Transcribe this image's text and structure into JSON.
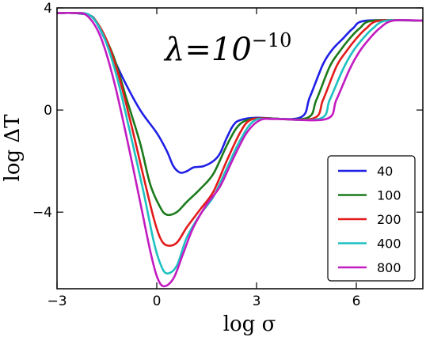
{
  "chart_data": {
    "type": "line",
    "xlabel": "log σ",
    "ylabel": "log ΔT",
    "annotation": {
      "base": "λ=10",
      "exponent": "−10"
    },
    "xlim": [
      -3,
      8
    ],
    "ylim": [
      -7,
      4
    ],
    "xticks": [
      {
        "v": -3,
        "label": "−3"
      },
      {
        "v": 0,
        "label": "0"
      },
      {
        "v": 3,
        "label": "3"
      },
      {
        "v": 6,
        "label": "6"
      }
    ],
    "yticks": [
      {
        "v": 4,
        "label": "4"
      },
      {
        "v": 0,
        "label": "0"
      },
      {
        "v": -4,
        "label": "−4"
      }
    ],
    "grid": false,
    "legend_position": "bottom-right",
    "series": [
      {
        "name": "40",
        "color": "#1f1fe6",
        "points": [
          [
            -3,
            3.8
          ],
          [
            -2.5,
            3.8
          ],
          [
            -2,
            3.7
          ],
          [
            -1.8,
            3.4
          ],
          [
            -1.5,
            2.6
          ],
          [
            -1,
            1.2
          ],
          [
            -0.5,
            0
          ],
          [
            0,
            -0.9
          ],
          [
            0.3,
            -1.6
          ],
          [
            0.5,
            -2.2
          ],
          [
            0.7,
            -2.45
          ],
          [
            0.9,
            -2.4
          ],
          [
            1.1,
            -2.25
          ],
          [
            1.4,
            -2.2
          ],
          [
            1.7,
            -2.0
          ],
          [
            1.9,
            -1.7
          ],
          [
            2.1,
            -1.1
          ],
          [
            2.3,
            -0.6
          ],
          [
            2.5,
            -0.4
          ],
          [
            3,
            -0.3
          ],
          [
            4.3,
            -0.3
          ],
          [
            4.6,
            0.5
          ],
          [
            5,
            1.8
          ],
          [
            5.3,
            2.4
          ],
          [
            5.6,
            2.8
          ],
          [
            5.9,
            3.2
          ],
          [
            6.3,
            3.5
          ],
          [
            8,
            3.5
          ]
        ]
      },
      {
        "name": "100",
        "color": "#1b7a1b",
        "points": [
          [
            -3,
            3.8
          ],
          [
            -2.5,
            3.8
          ],
          [
            -2,
            3.7
          ],
          [
            -1.7,
            3.2
          ],
          [
            -1.3,
            2.1
          ],
          [
            -0.9,
            0.4
          ],
          [
            -0.5,
            -1.3
          ],
          [
            -0.2,
            -2.9
          ],
          [
            0.1,
            -3.8
          ],
          [
            0.3,
            -4.1
          ],
          [
            0.6,
            -4.0
          ],
          [
            0.9,
            -3.6
          ],
          [
            1.3,
            -3.1
          ],
          [
            1.7,
            -2.5
          ],
          [
            2.1,
            -1.4
          ],
          [
            2.4,
            -0.7
          ],
          [
            2.7,
            -0.4
          ],
          [
            3.2,
            -0.32
          ],
          [
            4.5,
            -0.32
          ],
          [
            4.8,
            0.4
          ],
          [
            5.2,
            1.7
          ],
          [
            5.5,
            2.3
          ],
          [
            5.8,
            2.8
          ],
          [
            6.1,
            3.2
          ],
          [
            6.5,
            3.5
          ],
          [
            8,
            3.5
          ]
        ]
      },
      {
        "name": "200",
        "color": "#e31b1b",
        "points": [
          [
            -3,
            3.8
          ],
          [
            -2.5,
            3.8
          ],
          [
            -2,
            3.7
          ],
          [
            -1.6,
            3.0
          ],
          [
            -1.2,
            1.6
          ],
          [
            -0.8,
            -0.4
          ],
          [
            -0.4,
            -2.6
          ],
          [
            -0.1,
            -4.2
          ],
          [
            0.1,
            -5.0
          ],
          [
            0.3,
            -5.3
          ],
          [
            0.6,
            -5.2
          ],
          [
            0.9,
            -4.6
          ],
          [
            1.3,
            -3.9
          ],
          [
            1.7,
            -3.2
          ],
          [
            2.1,
            -2.0
          ],
          [
            2.5,
            -0.9
          ],
          [
            2.8,
            -0.4
          ],
          [
            3.3,
            -0.33
          ],
          [
            4.7,
            -0.33
          ],
          [
            5.0,
            0.4
          ],
          [
            5.4,
            1.7
          ],
          [
            5.7,
            2.3
          ],
          [
            6.0,
            2.8
          ],
          [
            6.3,
            3.2
          ],
          [
            6.7,
            3.5
          ],
          [
            8,
            3.5
          ]
        ]
      },
      {
        "name": "400",
        "color": "#1fc1c1",
        "points": [
          [
            -3,
            3.8
          ],
          [
            -2.5,
            3.8
          ],
          [
            -2,
            3.7
          ],
          [
            -1.6,
            2.9
          ],
          [
            -1.2,
            1.3
          ],
          [
            -0.8,
            -0.9
          ],
          [
            -0.4,
            -3.2
          ],
          [
            -0.1,
            -5.1
          ],
          [
            0.1,
            -6.0
          ],
          [
            0.3,
            -6.4
          ],
          [
            0.6,
            -6.1
          ],
          [
            0.9,
            -5.0
          ],
          [
            1.3,
            -4.1
          ],
          [
            1.7,
            -3.4
          ],
          [
            2.1,
            -2.3
          ],
          [
            2.5,
            -1.2
          ],
          [
            2.9,
            -0.45
          ],
          [
            3.4,
            -0.34
          ],
          [
            4.9,
            -0.34
          ],
          [
            5.2,
            0.4
          ],
          [
            5.6,
            1.6
          ],
          [
            5.9,
            2.3
          ],
          [
            6.2,
            2.8
          ],
          [
            6.5,
            3.2
          ],
          [
            6.9,
            3.5
          ],
          [
            8,
            3.5
          ]
        ]
      },
      {
        "name": "800",
        "color": "#c21bc2",
        "points": [
          [
            -3,
            3.8
          ],
          [
            -2.5,
            3.8
          ],
          [
            -2.1,
            3.7
          ],
          [
            -1.7,
            2.9
          ],
          [
            -1.3,
            1.2
          ],
          [
            -0.9,
            -1.1
          ],
          [
            -0.5,
            -3.6
          ],
          [
            -0.2,
            -5.5
          ],
          [
            0,
            -6.5
          ],
          [
            0.2,
            -6.9
          ],
          [
            0.5,
            -6.6
          ],
          [
            0.8,
            -5.6
          ],
          [
            1.1,
            -4.6
          ],
          [
            1.5,
            -3.7
          ],
          [
            1.9,
            -3.0
          ],
          [
            2.3,
            -1.9
          ],
          [
            2.7,
            -0.9
          ],
          [
            3.1,
            -0.4
          ],
          [
            3.6,
            -0.35
          ],
          [
            5.1,
            -0.35
          ],
          [
            5.4,
            0.4
          ],
          [
            5.8,
            1.6
          ],
          [
            6.1,
            2.3
          ],
          [
            6.4,
            2.8
          ],
          [
            6.7,
            3.2
          ],
          [
            7.1,
            3.5
          ],
          [
            8,
            3.5
          ]
        ]
      }
    ]
  }
}
